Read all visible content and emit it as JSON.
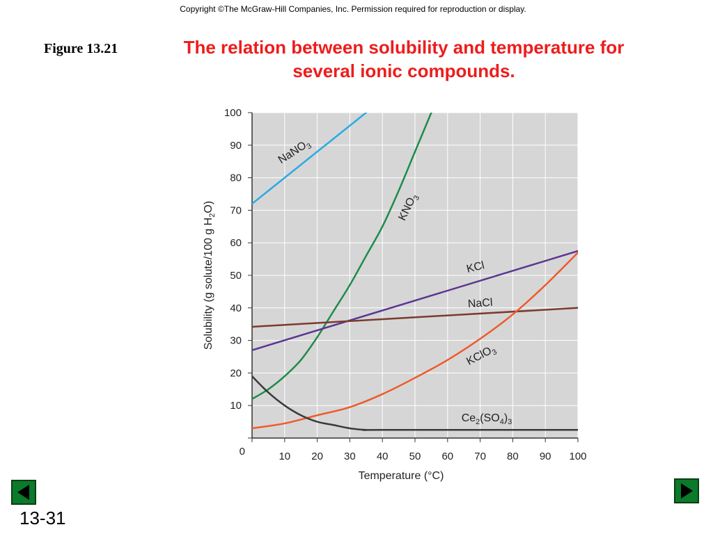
{
  "slide": {
    "copyright": "Copyright ©The McGraw-Hill Companies, Inc.  Permission required for reproduction or display.",
    "figure_label": "Figure 13.21",
    "title": "The relation between solubility and temperature for several ionic compounds.",
    "slide_number": "13-31",
    "nav": {
      "prev_icon": "triangle-left-icon",
      "next_icon": "triangle-right-icon",
      "button_color": "#0b7a2a"
    }
  },
  "chart_data": {
    "type": "line",
    "title": "",
    "xlabel": "Temperature (°C)",
    "ylabel_parts": [
      "Solubility (g solute/100 g H",
      "2",
      "O)"
    ],
    "xlim": [
      0,
      100
    ],
    "ylim": [
      0,
      100
    ],
    "x_ticks": [
      0,
      10,
      20,
      30,
      40,
      50,
      60,
      70,
      80,
      90,
      100
    ],
    "y_ticks": [
      0,
      10,
      20,
      30,
      40,
      50,
      60,
      70,
      80,
      90,
      100
    ],
    "x_tick_labels": [
      "0",
      "10",
      "20",
      "30",
      "40",
      "50",
      "60",
      "70",
      "80",
      "90",
      "100"
    ],
    "y_tick_labels": [
      "0",
      "10",
      "20",
      "30",
      "40",
      "50",
      "60",
      "70",
      "80",
      "90",
      "100"
    ],
    "grid": true,
    "plot_background": "#d6d6d6",
    "legend": "none",
    "series": [
      {
        "name_parts": [
          {
            "t": "NaNO"
          },
          {
            "t": "3",
            "sub": true
          }
        ],
        "color": "#29abe2",
        "x": [
          0,
          10,
          20,
          30,
          35
        ],
        "y": [
          72,
          80,
          88,
          96,
          100
        ]
      },
      {
        "name_parts": [
          {
            "t": "KNO"
          },
          {
            "t": "3",
            "sub": true
          }
        ],
        "color": "#1e8b4c",
        "x": [
          0,
          5,
          10,
          15,
          20,
          25,
          30,
          35,
          40,
          45,
          50,
          55
        ],
        "y": [
          12,
          15,
          19,
          24,
          31,
          39,
          47,
          56,
          65,
          76,
          88,
          100
        ]
      },
      {
        "name_parts": [
          {
            "t": "KCl"
          }
        ],
        "color": "#5b3592",
        "x": [
          0,
          100
        ],
        "y": [
          27,
          57.5
        ]
      },
      {
        "name_parts": [
          {
            "t": "NaCl"
          }
        ],
        "color": "#7a3b2e",
        "x": [
          0,
          100
        ],
        "y": [
          34.2,
          40
        ]
      },
      {
        "name_parts": [
          {
            "t": "KClO"
          },
          {
            "t": "3",
            "sub": true
          }
        ],
        "color": "#ef5a2a",
        "x": [
          0,
          10,
          20,
          30,
          40,
          50,
          60,
          70,
          80,
          90,
          100
        ],
        "y": [
          3,
          4.5,
          7,
          9.5,
          13.5,
          18.5,
          24,
          30.5,
          38,
          47,
          57
        ]
      },
      {
        "name_parts": [
          {
            "t": "Ce"
          },
          {
            "t": "2",
            "sub": true
          },
          {
            "t": "(SO"
          },
          {
            "t": "4",
            "sub": true
          },
          {
            "t": ")"
          },
          {
            "t": "3",
            "sub": true
          }
        ],
        "color": "#3a3a3a",
        "x": [
          0,
          5,
          10,
          15,
          20,
          25,
          30,
          35,
          40,
          100
        ],
        "y": [
          19,
          14,
          10,
          7,
          5,
          4,
          3,
          2.5,
          2.5,
          2.5
        ]
      }
    ]
  }
}
